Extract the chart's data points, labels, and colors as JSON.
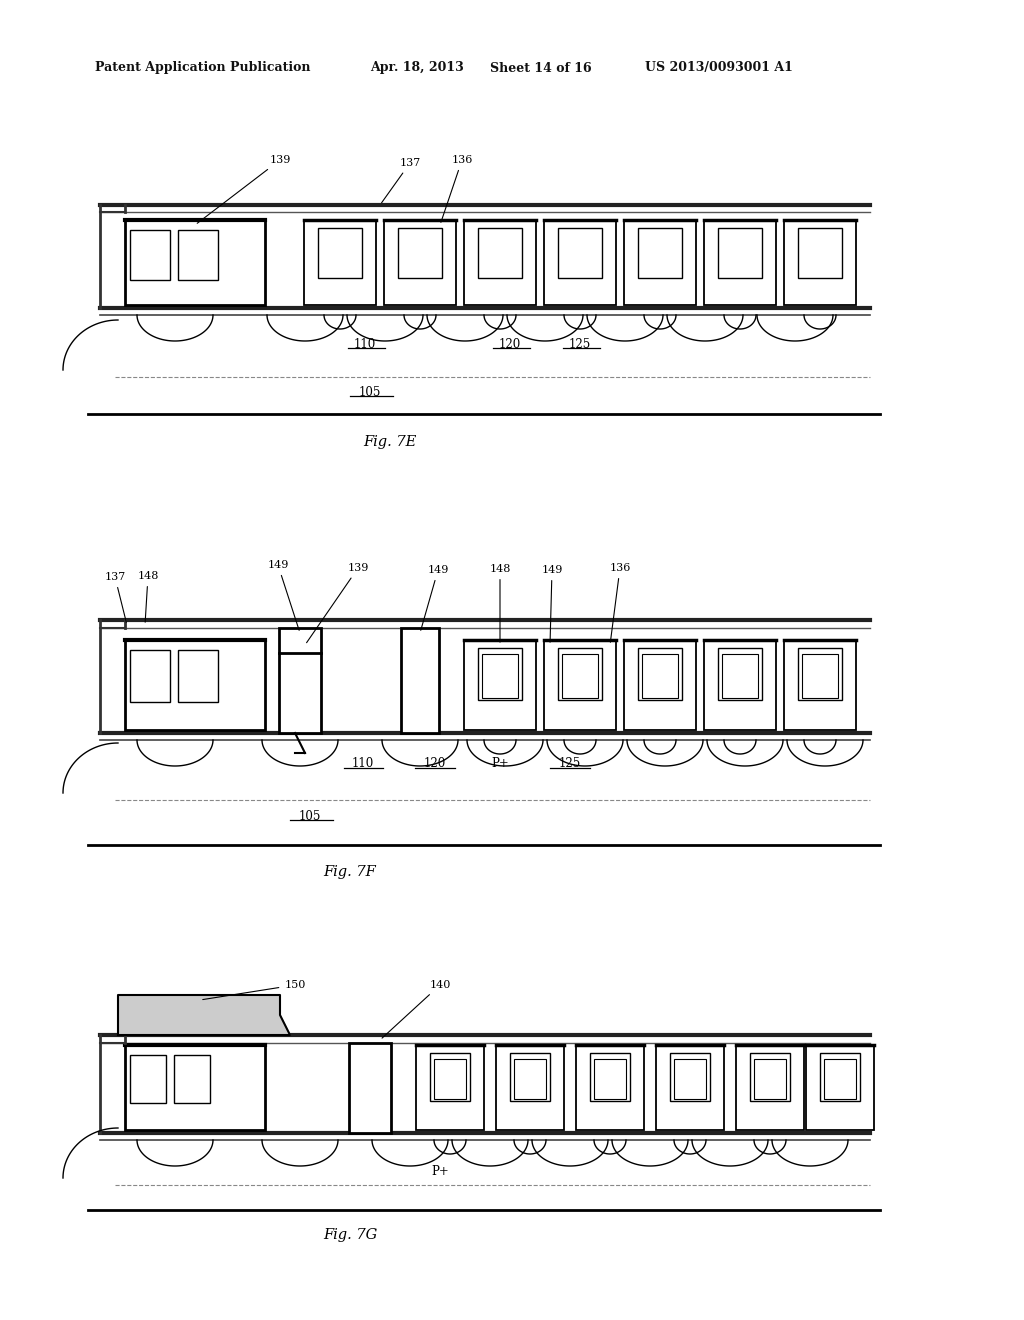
{
  "bg_color": "#ffffff",
  "header_text1": "Patent Application Publication",
  "header_text2": "Apr. 18, 2013",
  "header_text3": "Sheet 14 of 16",
  "header_text4": "US 2013/0093001 A1",
  "fig7e_label": "Fig. 7E",
  "fig7f_label": "Fig. 7F",
  "fig7g_label": "Fig. 7G"
}
